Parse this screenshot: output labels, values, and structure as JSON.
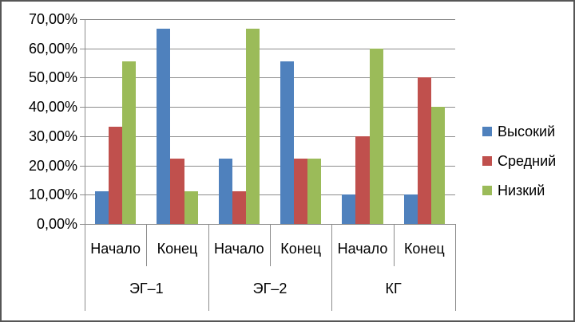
{
  "chart_data": {
    "type": "bar",
    "title": "",
    "y_axis": {
      "min": 0,
      "max": 70,
      "step": 10,
      "tick_labels": [
        "0,00%",
        "10,00%",
        "20,00%",
        "30,00%",
        "40,00%",
        "50,00%",
        "60,00%",
        "70,00%"
      ]
    },
    "x_axis": {
      "groups": [
        {
          "label": "ЭГ–1",
          "subcategories": [
            "Начало",
            "Конец"
          ]
        },
        {
          "label": "ЭГ–2",
          "subcategories": [
            "Начало",
            "Конец"
          ]
        },
        {
          "label": "КГ",
          "subcategories": [
            "Начало",
            "Конец"
          ]
        }
      ]
    },
    "series": [
      {
        "name": "Высокий",
        "color": "#4F81BD",
        "values": [
          11.11,
          66.67,
          22.22,
          55.56,
          10.0,
          10.0
        ]
      },
      {
        "name": "Средний",
        "color": "#C0504D",
        "values": [
          33.33,
          22.22,
          11.11,
          22.22,
          30.0,
          50.0
        ]
      },
      {
        "name": "Низкий",
        "color": "#9BBB59",
        "values": [
          55.56,
          11.11,
          66.67,
          22.22,
          60.0,
          40.0
        ]
      }
    ],
    "legend_position": "right",
    "grid": true
  },
  "colors": {
    "grid": "#8C8C8C",
    "axis": "#8C8C8C",
    "divider": "#8C8C8C",
    "text": "#000000",
    "background": "#FFFFFF",
    "frame_border": "#565656"
  }
}
